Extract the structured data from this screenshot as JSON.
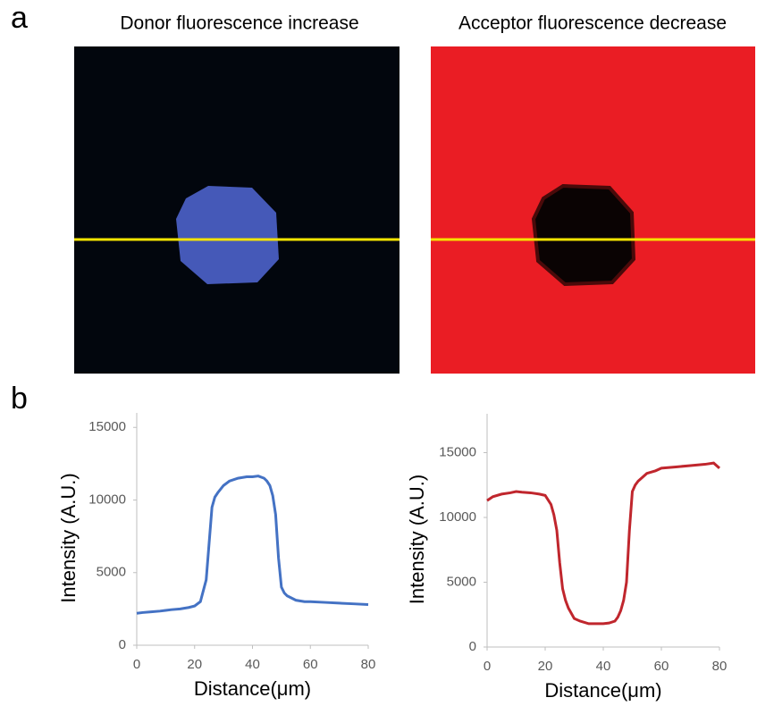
{
  "panels": [
    {
      "label": "a",
      "image_titles": [
        "Donor fluorescence increase",
        "Acceptor fluorescence decrease"
      ]
    },
    {
      "label": "b"
    }
  ],
  "chart_data": [
    {
      "type": "line",
      "x_label": "Distance(μm)",
      "y_label": "Intensity (A.U.)",
      "color": "#4472c4",
      "x": [
        0,
        2,
        5,
        8,
        10,
        12,
        15,
        18,
        20,
        22,
        24,
        25,
        26,
        27,
        28,
        30,
        32,
        35,
        38,
        40,
        42,
        44,
        45,
        46,
        47,
        48,
        49,
        50,
        51,
        52,
        55,
        58,
        60,
        65,
        70,
        75,
        80
      ],
      "values": [
        2200,
        2250,
        2300,
        2350,
        2400,
        2450,
        2500,
        2600,
        2700,
        3000,
        4500,
        7000,
        9500,
        10200,
        10500,
        11000,
        11300,
        11500,
        11600,
        11600,
        11650,
        11500,
        11300,
        11000,
        10300,
        9000,
        6000,
        4000,
        3600,
        3400,
        3100,
        3000,
        3000,
        2950,
        2900,
        2850,
        2800
      ],
      "xlim": [
        0,
        80
      ],
      "xticks": [
        0,
        20,
        40,
        60,
        80
      ],
      "ylim": [
        0,
        16000
      ],
      "yticks": [
        0,
        5000,
        10000,
        15000
      ]
    },
    {
      "type": "line",
      "x_label": "Distance(μm)",
      "y_label": "Intensity (A.U.)",
      "color": "#c0262d",
      "x": [
        0,
        2,
        5,
        8,
        10,
        12,
        15,
        18,
        20,
        22,
        23,
        24,
        25,
        26,
        27,
        28,
        30,
        32,
        35,
        38,
        40,
        42,
        44,
        45,
        46,
        47,
        48,
        49,
        50,
        51,
        52,
        55,
        58,
        60,
        65,
        70,
        75,
        78,
        80
      ],
      "values": [
        11300,
        11600,
        11800,
        11900,
        12000,
        11950,
        11900,
        11800,
        11700,
        11000,
        10200,
        9000,
        6500,
        4500,
        3600,
        3000,
        2200,
        2000,
        1800,
        1800,
        1800,
        1850,
        2000,
        2300,
        2800,
        3600,
        5000,
        9000,
        12000,
        12500,
        12800,
        13400,
        13600,
        13800,
        13900,
        14000,
        14100,
        14200,
        13800
      ],
      "xlim": [
        0,
        80
      ],
      "xticks": [
        0,
        20,
        40,
        60,
        80
      ],
      "ylim": [
        0,
        18000
      ],
      "yticks": [
        0,
        5000,
        10000,
        15000
      ]
    }
  ]
}
